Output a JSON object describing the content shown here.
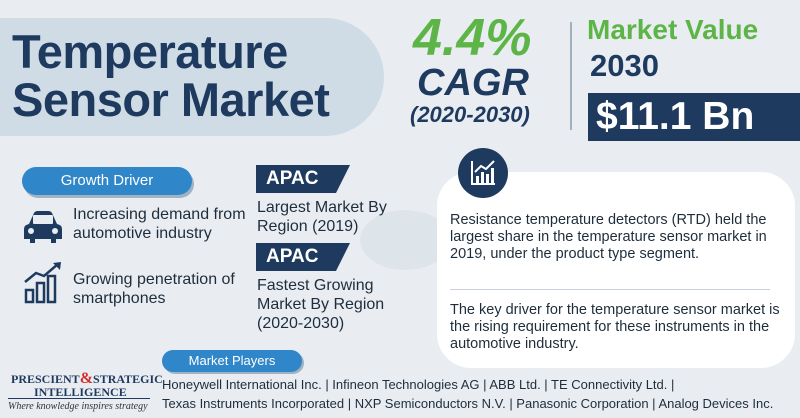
{
  "title": {
    "line1": "Temperature",
    "line2": "Sensor Market"
  },
  "cagr": {
    "value": "4.4%",
    "label": "CAGR",
    "period": "(2020-2030)"
  },
  "market_value": {
    "title": "Market Value",
    "year": "2030",
    "value": "$11.1 Bn"
  },
  "growth_driver": {
    "label": "Growth Driver",
    "items": [
      {
        "icon": "car-icon",
        "text": "Increasing demand from automotive industry"
      },
      {
        "icon": "bar-growth-icon",
        "text": "Growing penetration of smartphones"
      }
    ]
  },
  "regions": [
    {
      "tag": "APAC",
      "text": "Largest Market By Region (2019)"
    },
    {
      "tag": "APAC",
      "text": "Fastest Growing Market By Region (2020-2030)"
    }
  ],
  "insights": {
    "icon": "trend-chart-icon",
    "p1": "Resistance temperature detectors (RTD) held the largest share in the temperature sensor market in 2019, under the product type segment.",
    "p2": "The key driver for the temperature sensor market is the rising requirement for these instruments in the automotive industry."
  },
  "logo": {
    "word1": "PRESCIENT",
    "amp": "&",
    "word2": "STRATEGIC",
    "word3": "INTELLIGENCE",
    "tagline": "Where knowledge inspires strategy"
  },
  "market_players": {
    "label": "Market Players",
    "line1": "Honeywell International Inc. | Infineon Technologies AG | ABB Ltd. | TE Connectivity Ltd. |",
    "line2": "Texas Instruments Incorporated | NXP Semiconductors N.V. | Panasonic Corporation | Analog Devices Inc."
  },
  "colors": {
    "navy": "#1e3a5f",
    "green": "#5db548",
    "blue": "#2f86c8",
    "background": "#e9edf1"
  }
}
